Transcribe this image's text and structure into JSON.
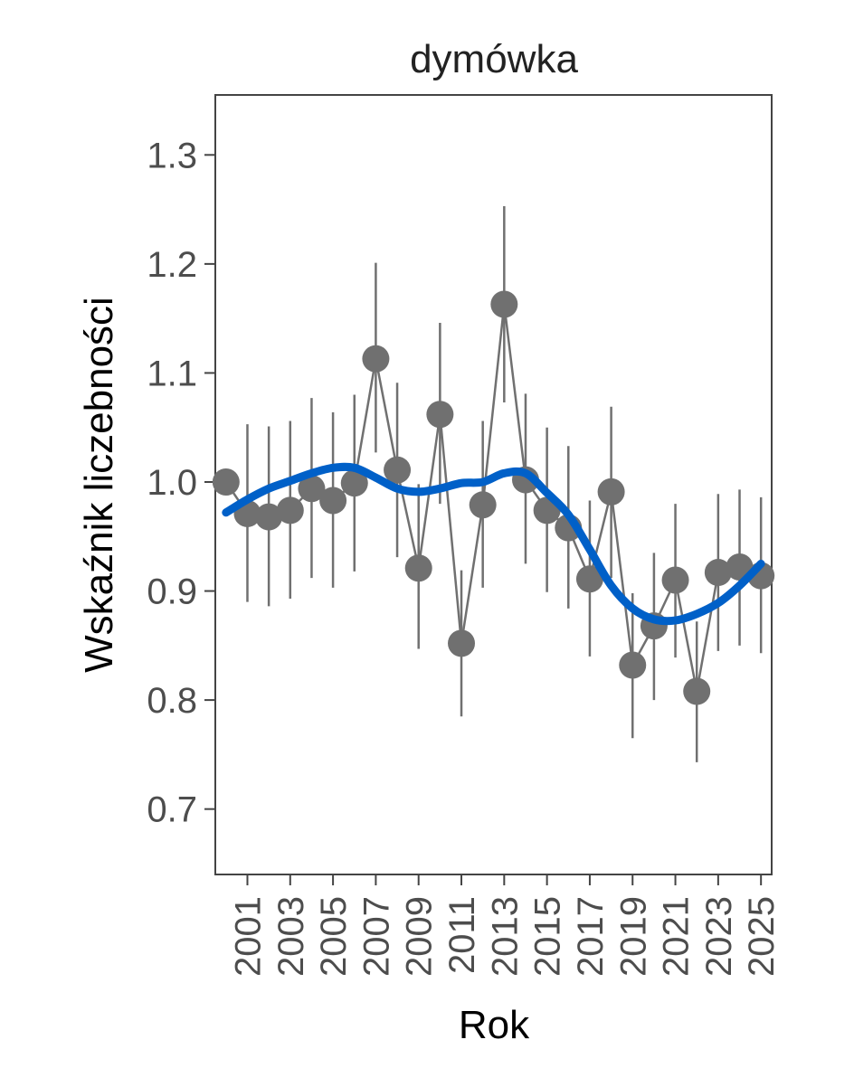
{
  "chart_data": {
    "type": "scatter",
    "title": "dymówka",
    "xlabel": "Rok",
    "ylabel": "Wskaźnik liczebności",
    "xlim": [
      1999.5,
      2025.5
    ],
    "ylim": [
      0.64,
      1.355
    ],
    "yticks": [
      0.7,
      0.8,
      0.9,
      1.0,
      1.1,
      1.2,
      1.3
    ],
    "ytick_labels": [
      "0.7",
      "0.8",
      "0.9",
      "1.0",
      "1.1",
      "1.2",
      "1.3"
    ],
    "xticks": [
      2001,
      2003,
      2005,
      2007,
      2009,
      2011,
      2013,
      2015,
      2017,
      2019,
      2021,
      2023,
      2025
    ],
    "xtick_labels": [
      "2001",
      "2003",
      "2005",
      "2007",
      "2009",
      "2011",
      "2013",
      "2015",
      "2017",
      "2019",
      "2021",
      "2023",
      "2025"
    ],
    "grid": false,
    "series": [
      {
        "name": "index",
        "color": "#707070",
        "x": [
          2000,
          2001,
          2002,
          2003,
          2004,
          2005,
          2006,
          2007,
          2008,
          2009,
          2010,
          2011,
          2012,
          2013,
          2014,
          2015,
          2016,
          2017,
          2018,
          2019,
          2020,
          2021,
          2022,
          2023,
          2024,
          2025
        ],
        "y": [
          1.0,
          0.971,
          0.968,
          0.974,
          0.994,
          0.983,
          0.999,
          1.113,
          1.011,
          0.921,
          1.062,
          0.852,
          0.979,
          1.163,
          1.002,
          0.974,
          0.958,
          0.911,
          0.991,
          0.832,
          0.868,
          0.91,
          0.808,
          0.917,
          0.922,
          0.914
        ],
        "lower": [
          1.0,
          0.89,
          0.886,
          0.893,
          0.912,
          0.903,
          0.918,
          1.027,
          0.931,
          0.847,
          0.98,
          0.785,
          0.903,
          1.073,
          0.925,
          0.899,
          0.884,
          0.84,
          0.912,
          0.765,
          0.8,
          0.839,
          0.743,
          0.845,
          0.85,
          0.843
        ],
        "upper": [
          1.0,
          1.053,
          1.051,
          1.056,
          1.077,
          1.064,
          1.08,
          1.201,
          1.091,
          0.998,
          1.146,
          0.919,
          1.056,
          1.253,
          1.081,
          1.05,
          1.033,
          0.983,
          1.069,
          0.898,
          0.935,
          0.98,
          0.872,
          0.989,
          0.993,
          0.986
        ]
      },
      {
        "name": "trend",
        "color": "#0060c8",
        "x": [
          2000,
          2001,
          2002,
          2003,
          2004,
          2005,
          2006,
          2007,
          2008,
          2009,
          2010,
          2011,
          2012,
          2013,
          2014,
          2015,
          2016,
          2017,
          2018,
          2019,
          2020,
          2021,
          2022,
          2023,
          2024,
          2025
        ],
        "y": [
          0.972,
          0.984,
          0.994,
          1.001,
          1.008,
          1.013,
          1.013,
          1.004,
          0.994,
          0.991,
          0.994,
          0.999,
          1.0,
          1.008,
          1.008,
          0.99,
          0.97,
          0.938,
          0.905,
          0.884,
          0.874,
          0.873,
          0.879,
          0.889,
          0.905,
          0.925
        ]
      }
    ]
  }
}
